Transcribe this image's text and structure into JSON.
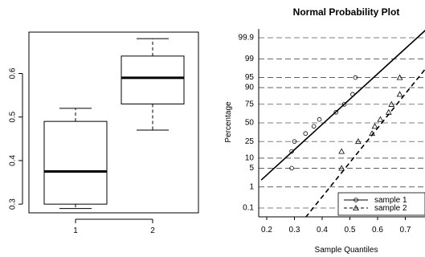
{
  "chart_data": [
    {
      "type": "box",
      "categories": [
        "1",
        "2"
      ],
      "boxes": [
        {
          "category": "1",
          "min": 0.29,
          "q1": 0.3,
          "median": 0.375,
          "q3": 0.49,
          "max": 0.52
        },
        {
          "category": "2",
          "min": 0.47,
          "q1": 0.53,
          "median": 0.59,
          "q3": 0.64,
          "max": 0.68
        }
      ],
      "ylim": [
        0.28,
        0.695
      ],
      "y_ticks": [
        0.3,
        0.4,
        0.5,
        0.6
      ],
      "y_tick_labels": [
        "0.3",
        "0.4",
        "0.5",
        "0.6"
      ],
      "title": "",
      "xlabel": "",
      "ylabel": ""
    },
    {
      "type": "scatter",
      "title": "Normal Probability Plot",
      "xlabel": "Sample Quantiles",
      "ylabel": "Percentage",
      "xlim": [
        0.18,
        0.78
      ],
      "x_ticks": [
        0.2,
        0.3,
        0.4,
        0.5,
        0.6,
        0.7
      ],
      "x_tick_labels": [
        "0.2",
        "0.3",
        "0.4",
        "0.5",
        "0.6",
        "0.7"
      ],
      "y_ticks_percent": [
        0.1,
        1,
        5,
        10,
        25,
        50,
        75,
        90,
        95,
        99,
        99.9
      ],
      "y_tick_labels": [
        "0.1",
        "1",
        "5",
        "10",
        "25",
        "50",
        "75",
        "90",
        "95",
        "99",
        "99.9"
      ],
      "y_scale": "normal-probability",
      "grid": "horizontal dashed",
      "legend": {
        "position": "bottom-right",
        "entries": [
          "sample 1",
          "sample 2"
        ]
      },
      "series": [
        {
          "name": "sample 1",
          "marker": "circle",
          "line": "solid",
          "x": [
            0.29,
            0.29,
            0.3,
            0.34,
            0.37,
            0.39,
            0.45,
            0.48,
            0.51,
            0.52
          ],
          "y": [
            5,
            15,
            25,
            35,
            45,
            55,
            65,
            75,
            85,
            95
          ],
          "fit_line": [
            [
              0.18,
              1.9
            ],
            [
              0.78,
              99.97
            ]
          ]
        },
        {
          "name": "sample 2",
          "marker": "triangle",
          "line": "dashed",
          "x": [
            0.47,
            0.47,
            0.53,
            0.58,
            0.59,
            0.61,
            0.64,
            0.65,
            0.68,
            0.68
          ],
          "y": [
            5,
            15,
            25,
            35,
            45,
            55,
            65,
            75,
            85,
            95
          ],
          "fit_line": [
            [
              0.34,
              0.03
            ],
            [
              0.78,
              98.0
            ]
          ]
        }
      ]
    }
  ]
}
